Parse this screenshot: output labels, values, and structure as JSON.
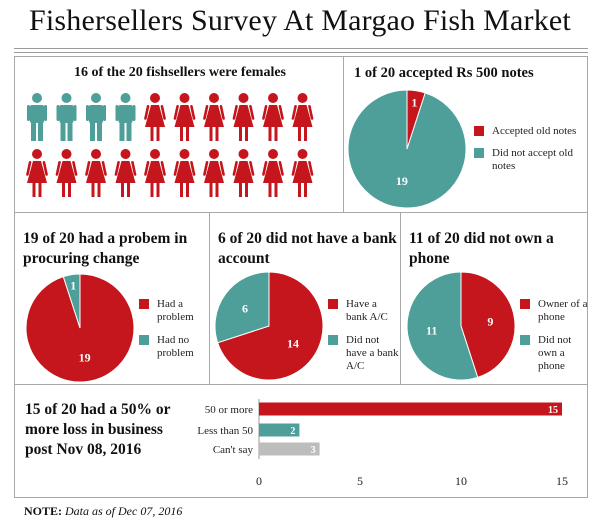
{
  "title": "Fishersellers Survey At Margao Fish Market",
  "colors": {
    "red": "#c4161c",
    "teal": "#4e9e99",
    "gray": "#bdbdbd"
  },
  "note": {
    "label": "NOTE:",
    "text": "Data as of Dec 07, 2016"
  },
  "chart_data": [
    {
      "type": "pictogram",
      "title": "16 of the 20 fishsellers were females",
      "categories": [
        "male",
        "female"
      ],
      "icons": [
        "male-figure-icon",
        "female-figure-icon"
      ],
      "values": [
        4,
        16
      ],
      "total": 20
    },
    {
      "type": "pie",
      "title": "1 of 20 accepted Rs 500 notes",
      "labels": [
        "Accepted old notes",
        "Did not accept old notes"
      ],
      "values": [
        1,
        19
      ]
    },
    {
      "type": "pie",
      "title": "19 of 20 had a probem in procuring change",
      "labels": [
        "Had a problem",
        "Had no problem"
      ],
      "values": [
        19,
        1
      ]
    },
    {
      "type": "pie",
      "title": "6 of 20 did not have a bank account",
      "labels": [
        "Have a bank A/C",
        "Did not have a bank A/C"
      ],
      "values": [
        14,
        6
      ]
    },
    {
      "type": "pie",
      "title": "11 of 20 did not own a phone",
      "labels": [
        "Owner of a phone",
        "Did not own a phone"
      ],
      "values": [
        9,
        11
      ]
    },
    {
      "type": "bar",
      "orientation": "horizontal",
      "title": "15 of 20 had a 50% or more loss in business post Nov 08, 2016",
      "categories": [
        "50 or more",
        "Less than 50",
        "Can't say"
      ],
      "values": [
        15,
        2,
        3
      ],
      "xlim": [
        0,
        15
      ],
      "xticks": [
        0,
        5,
        10,
        15
      ]
    }
  ]
}
